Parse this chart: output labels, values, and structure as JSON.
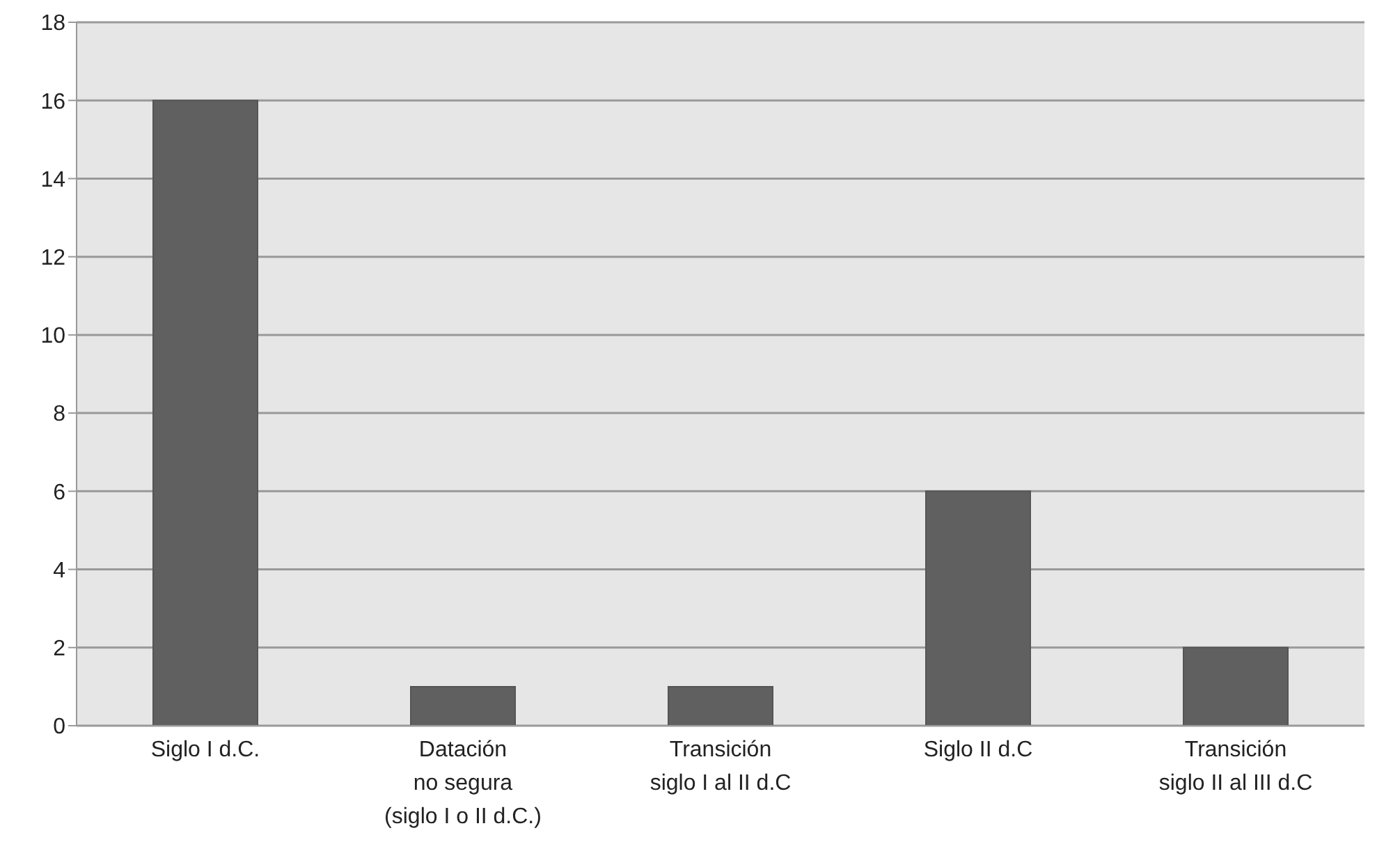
{
  "chart_data": {
    "type": "bar",
    "categories": [
      "Siglo I d.C.",
      "Datación\nno segura\n(siglo I o II d.C.)",
      "Transición\nsiglo I al II d.C",
      "Siglo II d.C",
      "Transición\nsiglo II al III d.C"
    ],
    "values": [
      16,
      1,
      1,
      6,
      2
    ],
    "color": "#606060",
    "ylim": [
      0,
      18
    ],
    "yticks": [
      0,
      2,
      4,
      6,
      8,
      10,
      12,
      14,
      16,
      18
    ],
    "grid": "y"
  }
}
